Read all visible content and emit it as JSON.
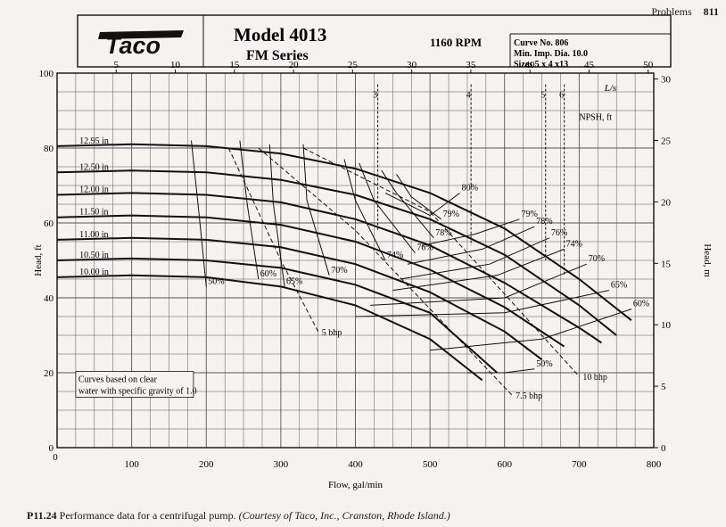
{
  "page": {
    "section": "Problems",
    "page_number": "811"
  },
  "header": {
    "brand": "Taco",
    "model": "Model 4013",
    "series": "FM Series",
    "speed": "1160 RPM",
    "curve_no": "Curve No. 806",
    "min_imp": "Min. Imp. Dia. 10.0",
    "sizes": "Sizes 5 x 4 x13"
  },
  "caption": {
    "number": "P11.24",
    "text": "Performance data for a centrifugal pump.",
    "credit": "(Courtesy of Taco, Inc., Cranston, Rhode Island.)"
  },
  "chart_data": {
    "type": "line",
    "xlabel": "Flow, gal/min",
    "ylabel": "Head, ft",
    "xlim": [
      0,
      800
    ],
    "ylim": [
      0,
      100
    ],
    "x_ticks": [
      0,
      100,
      200,
      300,
      400,
      500,
      600,
      700,
      800
    ],
    "y_ticks": [
      0,
      20,
      40,
      60,
      80,
      100
    ],
    "top_axis": {
      "label": "L/s",
      "ticks": [
        5,
        10,
        15,
        20,
        25,
        30,
        35,
        40,
        45,
        50
      ]
    },
    "right_axis": {
      "label": "Head, m",
      "ticks": [
        0,
        5,
        10,
        15,
        20,
        25,
        30
      ]
    },
    "npsh_label": "NPSH, ft",
    "npsh_ticks": [
      "3",
      "4",
      "5",
      "6"
    ],
    "grid": true,
    "note": "Curves based on clear water with specific gravity of 1.0",
    "impeller_curves": [
      {
        "name": "12.95 in",
        "x": [
          0,
          100,
          200,
          300,
          400,
          500,
          600,
          700,
          770
        ],
        "y": [
          80.5,
          81,
          80.5,
          78.5,
          74.5,
          68,
          58.5,
          45,
          34
        ]
      },
      {
        "name": "12.50 in",
        "x": [
          0,
          100,
          200,
          300,
          400,
          500,
          600,
          700,
          750
        ],
        "y": [
          73.5,
          74,
          73.5,
          71.5,
          67.5,
          61,
          51.5,
          38,
          30
        ]
      },
      {
        "name": "12.00 in",
        "x": [
          0,
          100,
          200,
          300,
          400,
          500,
          600,
          700,
          730
        ],
        "y": [
          67.5,
          68,
          67.5,
          65.5,
          61,
          54,
          44,
          32,
          28
        ]
      },
      {
        "name": "11.50 in",
        "x": [
          0,
          100,
          200,
          300,
          400,
          500,
          600,
          680
        ],
        "y": [
          61.5,
          62,
          61.5,
          59.5,
          55,
          47.5,
          37.5,
          27
        ]
      },
      {
        "name": "11.00 in",
        "x": [
          0,
          100,
          200,
          300,
          400,
          500,
          600,
          650
        ],
        "y": [
          55.5,
          56,
          55.5,
          53.5,
          49,
          41.5,
          31,
          23.5
        ]
      },
      {
        "name": "10.50 in",
        "x": [
          0,
          100,
          200,
          300,
          400,
          500,
          590
        ],
        "y": [
          50,
          50.5,
          50,
          48,
          43.5,
          36,
          20
        ]
      },
      {
        "name": "10.00 in",
        "x": [
          0,
          100,
          200,
          300,
          400,
          500,
          570
        ],
        "y": [
          45.5,
          46,
          45.5,
          43,
          38,
          29,
          18
        ]
      }
    ],
    "efficiency_contours": [
      {
        "name": "50%",
        "x": [
          180,
          190,
          200
        ],
        "y": [
          82,
          63,
          43
        ]
      },
      {
        "name": "60%",
        "x": [
          245,
          255,
          270
        ],
        "y": [
          82,
          65,
          45
        ]
      },
      {
        "name": "65%",
        "x": [
          285,
          290,
          305
        ],
        "y": [
          81,
          65,
          43
        ]
      },
      {
        "name": "70%",
        "x": [
          330,
          335,
          365
        ],
        "y": [
          81,
          66,
          46
        ]
      },
      {
        "name": "74%",
        "x": [
          385,
          400,
          440
        ],
        "y": [
          77,
          66,
          50
        ]
      },
      {
        "name": "76%",
        "x": [
          405,
          425,
          480
        ],
        "y": [
          76,
          66,
          52
        ]
      },
      {
        "name": "78%",
        "x": [
          435,
          455,
          505
        ],
        "y": [
          74,
          68,
          56
        ]
      },
      {
        "name": "79%",
        "x": [
          455,
          475,
          515
        ],
        "y": [
          73,
          67,
          61
        ]
      },
      {
        "name": "80%",
        "x": [
          440,
          500,
          540
        ],
        "y": [
          68,
          62,
          68
        ]
      },
      {
        "name": "79%",
        "x": [
          490,
          560,
          620
        ],
        "y": [
          54,
          57,
          61
        ]
      },
      {
        "name": "78%",
        "x": [
          470,
          570,
          640
        ],
        "y": [
          49,
          53,
          59
        ]
      },
      {
        "name": "76%",
        "x": [
          460,
          580,
          660
        ],
        "y": [
          45,
          49,
          56
        ]
      },
      {
        "name": "74%",
        "x": [
          450,
          590,
          680
        ],
        "y": [
          42,
          46,
          53
        ]
      },
      {
        "name": "70%",
        "x": [
          420,
          600,
          710
        ],
        "y": [
          38,
          40,
          49
        ]
      },
      {
        "name": "65%",
        "x": [
          400,
          600,
          740
        ],
        "y": [
          35,
          36,
          42
        ]
      },
      {
        "name": "60%",
        "x": [
          500,
          650,
          770
        ],
        "y": [
          26,
          29,
          37
        ]
      },
      {
        "name": "50%",
        "x": [
          550,
          600,
          640
        ],
        "y": [
          20,
          20,
          21
        ]
      }
    ],
    "power_lines": [
      {
        "name": "5 bhp",
        "x": [
          230,
          300,
          350
        ],
        "y": [
          80,
          50,
          31
        ]
      },
      {
        "name": "7.5 bhp",
        "x": [
          270,
          400,
          610
        ],
        "y": [
          80,
          58,
          14
        ]
      },
      {
        "name": "10 bhp",
        "x": [
          330,
          500,
          700
        ],
        "y": [
          80,
          63,
          19
        ]
      }
    ]
  }
}
